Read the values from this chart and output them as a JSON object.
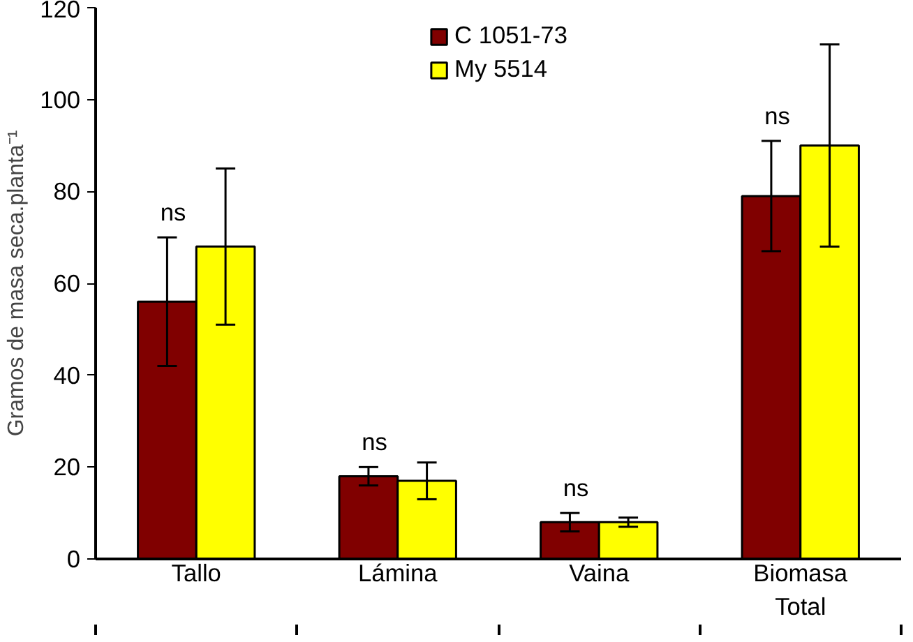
{
  "chart_data": {
    "type": "bar",
    "ylabel": "Gramos de masa seca.planta⁻¹",
    "categories": [
      "Tallo",
      "Lámina",
      "Vaina",
      "Biomasa\nTotal"
    ],
    "series": [
      {
        "name": "C 1051-73",
        "color": "#800000",
        "values": [
          56,
          18,
          8,
          79
        ],
        "errors": [
          [
            42,
            70
          ],
          [
            16,
            20
          ],
          [
            6,
            10
          ],
          [
            67,
            91
          ]
        ]
      },
      {
        "name": "My 5514",
        "color": "#ffff00",
        "values": [
          68,
          17,
          8,
          90
        ],
        "errors": [
          [
            51,
            85
          ],
          [
            13,
            21
          ],
          [
            7,
            9
          ],
          [
            68,
            112
          ]
        ]
      }
    ],
    "ylim": [
      0,
      120
    ],
    "yticks": [
      0,
      20,
      40,
      60,
      80,
      100,
      120
    ],
    "grid": false,
    "legend": "top",
    "annotations": [
      "ns",
      "ns",
      "ns",
      "ns"
    ]
  }
}
